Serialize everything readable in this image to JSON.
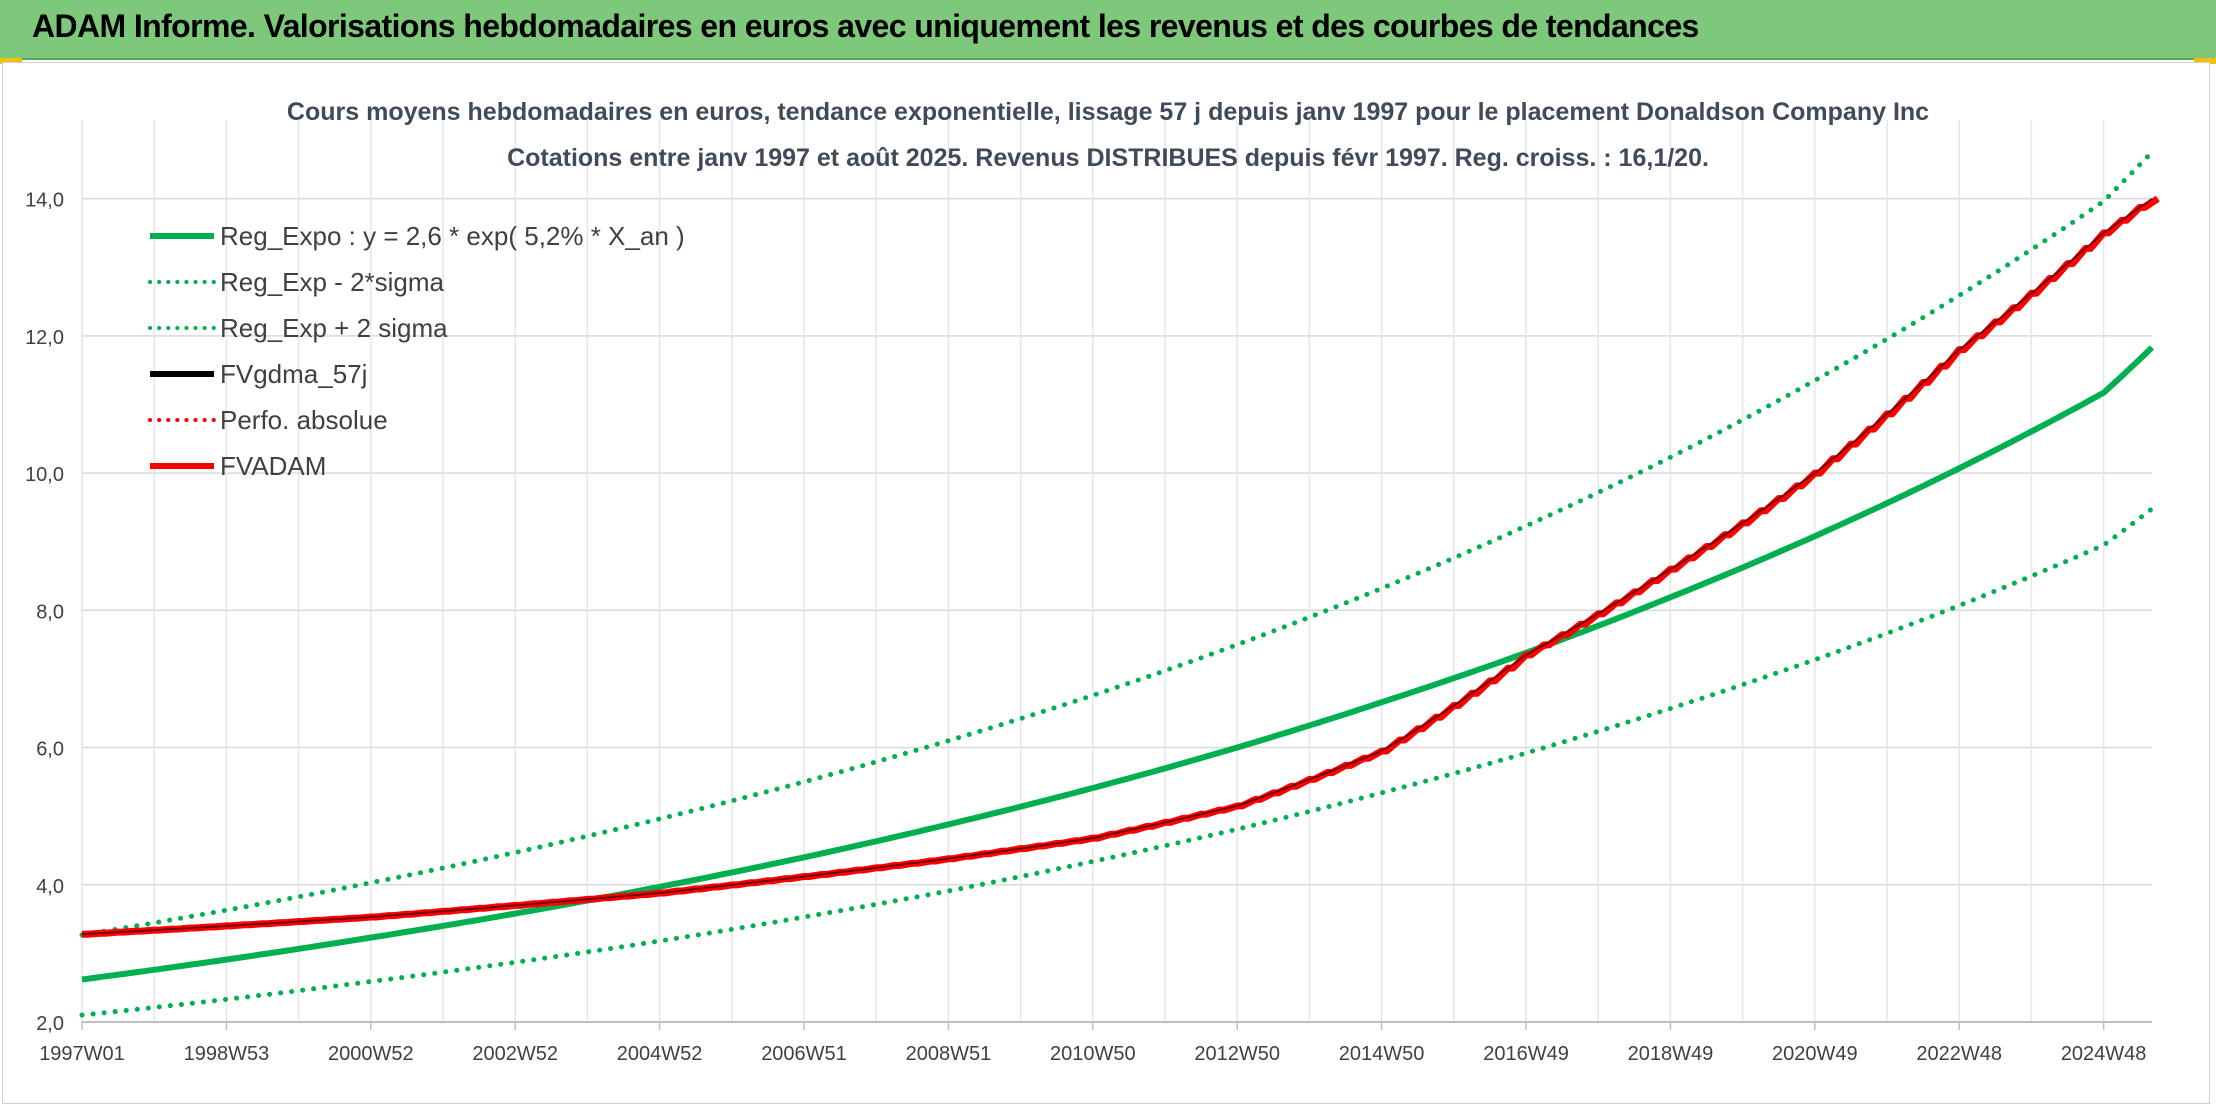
{
  "header": {
    "title": "ADAM Informe. Valorisations hebdomadaires en euros avec uniquement les revenus et des courbes de tendances"
  },
  "colors": {
    "header_bg": "#7dc87a",
    "green": "#00b050",
    "red": "#ff0000",
    "black": "#000000",
    "grid": "#d9d9d9"
  },
  "chart_data": {
    "type": "line",
    "title": "Cours moyens hebdomadaires en euros, tendance exponentielle, lissage 57 j depuis janv 1997 pour le placement Donaldson Company Inc",
    "subtitle": "Cotations entre janv 1997 et août 2025. Revenus DISTRIBUES depuis févr 1997. Reg. croiss. : 16,1/20.",
    "xlabel": "",
    "ylabel": "",
    "ylim": [
      2.0,
      15.0
    ],
    "y_ticks": [
      "2,0",
      "4,0",
      "6,0",
      "8,0",
      "10,0",
      "12,0",
      "14,0"
    ],
    "y_tick_values": [
      2,
      4,
      6,
      8,
      10,
      12,
      14
    ],
    "x_range": [
      1997.0,
      2025.67
    ],
    "x_ticks": [
      "1997W01",
      "1998W53",
      "2000W52",
      "2002W52",
      "2004W52",
      "2006W51",
      "2008W51",
      "2010W50",
      "2012W50",
      "2014W50",
      "2016W49",
      "2018W49",
      "2020W49",
      "2022W48",
      "2024W48"
    ],
    "x_tick_years": [
      1997.0,
      1999.0,
      2001.0,
      2003.0,
      2005.0,
      2007.0,
      2009.0,
      2011.0,
      2013.0,
      2015.0,
      2017.0,
      2019.0,
      2021.0,
      2023.0,
      2025.0
    ],
    "grid": true,
    "legend_position": "top-left",
    "legend": [
      {
        "label": "Reg_Expo : y = 2,6 * exp( 5,2% *  X_an )",
        "color": "#00b050",
        "style": "solid"
      },
      {
        "label": "Reg_Exp - 2*sigma",
        "color": "#00b050",
        "style": "dotted"
      },
      {
        "label": "Reg_Exp + 2 sigma",
        "color": "#00b050",
        "style": "dotted"
      },
      {
        "label": "FVgdma_57j",
        "color": "#000000",
        "style": "solid"
      },
      {
        "label": "Perfo. absolue",
        "color": "#ff0000",
        "style": "dotted"
      },
      {
        "label": "FVADAM",
        "color": "#ff0000",
        "style": "solid"
      }
    ],
    "series": [
      {
        "name": "Reg_Expo : y = 2,6 * exp( 5,2% *  X_an )",
        "x": [
          1997,
          1999,
          2001,
          2003,
          2005,
          2007,
          2009,
          2011,
          2013,
          2015,
          2017,
          2019,
          2021,
          2023,
          2025,
          2025.67
        ],
        "values": [
          2.62,
          2.91,
          3.23,
          3.58,
          3.97,
          4.4,
          4.88,
          5.41,
          6.0,
          6.66,
          7.38,
          8.19,
          9.08,
          10.07,
          11.17,
          11.83
        ]
      },
      {
        "name": "Reg_Exp - 2*sigma",
        "x": [
          1997,
          1999,
          2001,
          2003,
          2005,
          2007,
          2009,
          2011,
          2013,
          2015,
          2017,
          2019,
          2021,
          2023,
          2025,
          2025.67
        ],
        "values": [
          2.1,
          2.33,
          2.59,
          2.87,
          3.18,
          3.53,
          3.91,
          4.34,
          4.81,
          5.34,
          5.92,
          6.57,
          7.28,
          8.07,
          8.95,
          9.48
        ]
      },
      {
        "name": "Reg_Exp + 2 sigma",
        "x": [
          1997,
          1999,
          2001,
          2003,
          2005,
          2007,
          2009,
          2011,
          2013,
          2015,
          2017,
          2019,
          2021,
          2023,
          2025,
          2025.67
        ],
        "values": [
          3.27,
          3.63,
          4.03,
          4.47,
          4.96,
          5.5,
          6.1,
          6.76,
          7.5,
          8.32,
          9.23,
          10.23,
          11.35,
          12.59,
          13.96,
          14.68
        ]
      },
      {
        "name": "FVgdma_57j",
        "x": [
          1997,
          1999,
          2001,
          2003,
          2005,
          2007,
          2009,
          2011,
          2013,
          2015,
          2017,
          2019,
          2021,
          2023,
          2025,
          2025.67
        ],
        "values": [
          3.28,
          3.4,
          3.53,
          3.7,
          3.88,
          4.12,
          4.38,
          4.68,
          5.15,
          5.95,
          7.35,
          8.6,
          10.0,
          11.8,
          13.5,
          14.0
        ]
      },
      {
        "name": "FVADAM",
        "x": [
          1997,
          1999,
          2001,
          2003,
          2005,
          2007,
          2009,
          2011,
          2013,
          2015,
          2017,
          2019,
          2021,
          2023,
          2025,
          2025.67
        ],
        "values": [
          3.28,
          3.4,
          3.53,
          3.7,
          3.88,
          4.12,
          4.38,
          4.68,
          5.15,
          5.95,
          7.35,
          8.6,
          10.0,
          11.8,
          13.5,
          14.0
        ]
      }
    ]
  }
}
